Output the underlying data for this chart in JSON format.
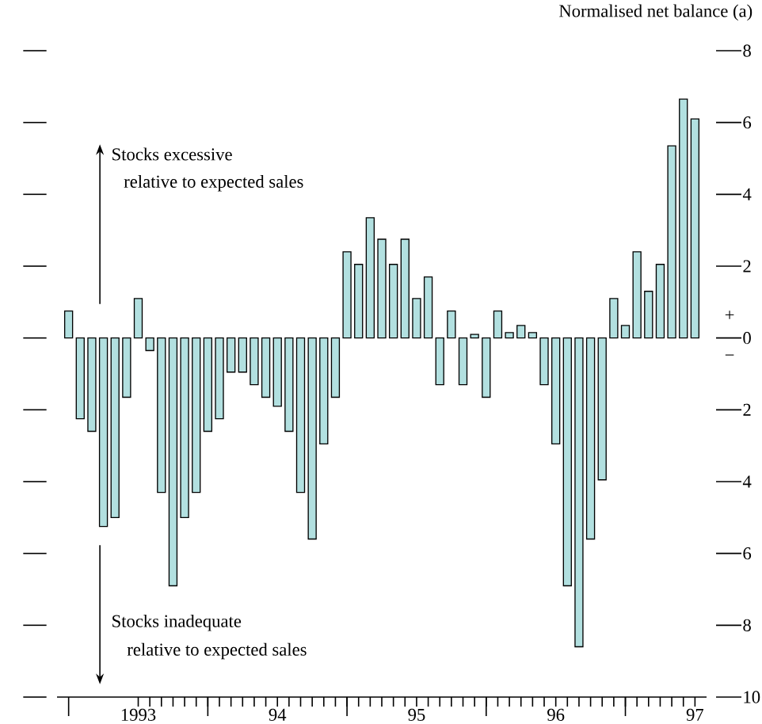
{
  "chart_data": {
    "type": "bar",
    "ylabel": "Normalised net balance (a)",
    "color": "#b2e0e0",
    "x": [
      "1993-01",
      "1993-02",
      "1993-03",
      "1993-04",
      "1993-05",
      "1993-06",
      "1993-07",
      "1993-08",
      "1993-09",
      "1993-10",
      "1993-11",
      "1993-12",
      "1994-01",
      "1994-02",
      "1994-03",
      "1994-04",
      "1994-05",
      "1994-06",
      "1994-07",
      "1994-08",
      "1994-09",
      "1994-10",
      "1994-11",
      "1994-12",
      "1995-01",
      "1995-02",
      "1995-03",
      "1995-04",
      "1995-05",
      "1995-06",
      "1995-07",
      "1995-08",
      "1995-09",
      "1995-10",
      "1995-11",
      "1995-12",
      "1996-01",
      "1996-02",
      "1996-03",
      "1996-04",
      "1996-05",
      "1996-06",
      "1996-07",
      "1996-08",
      "1996-09",
      "1996-10",
      "1996-11",
      "1996-12",
      "1997-01",
      "1997-02",
      "1997-03",
      "1997-04",
      "1997-05",
      "1997-06",
      "1997-07"
    ],
    "values": [
      0.75,
      -2.25,
      -2.6,
      -5.25,
      -5.0,
      -1.65,
      1.1,
      -0.35,
      -4.3,
      -6.9,
      -5.0,
      -4.3,
      -2.6,
      -2.25,
      -0.95,
      -0.95,
      -1.3,
      -1.65,
      -1.9,
      -2.6,
      -4.3,
      -5.6,
      -2.95,
      -1.65,
      2.4,
      2.05,
      3.35,
      2.75,
      2.05,
      2.75,
      1.1,
      1.7,
      -1.3,
      0.75,
      -1.3,
      0.1,
      -1.65,
      0.75,
      0.15,
      0.35,
      0.15,
      -1.3,
      -2.95,
      -6.9,
      -8.6,
      -5.6,
      -3.95,
      1.1,
      0.35,
      2.4,
      1.3,
      2.05,
      5.35,
      6.65,
      6.1
    ],
    "xlim": [
      "1992-12",
      "1997-08"
    ],
    "xticks": [
      {
        "value": "1993-07",
        "label": "1993"
      },
      {
        "value": "1994-07",
        "label": "94"
      },
      {
        "value": "1995-07",
        "label": "95"
      },
      {
        "value": "1996-07",
        "label": "96"
      },
      {
        "value": "1997-07",
        "label": "97"
      },
      {
        "value": "1993-01",
        "label": null
      },
      {
        "value": "1994-01",
        "label": null
      },
      {
        "value": "1995-01",
        "label": null
      },
      {
        "value": "1996-01",
        "label": null
      },
      {
        "value": "1997-01",
        "label": null
      }
    ],
    "ylim": [
      -10,
      8
    ],
    "yticks": [
      8,
      6,
      4,
      2,
      0,
      {
        "value": -2,
        "label": "2"
      },
      {
        "value": -4,
        "label": "4"
      },
      {
        "value": -6,
        "label": "6"
      },
      {
        "value": -8,
        "label": "8"
      },
      {
        "value": -10,
        "label": "10"
      }
    ],
    "annotations": [
      "Stocks excessive",
      "relative to expected sales",
      "Stocks inadequate",
      "relative to expected sales",
      "+",
      "−"
    ]
  }
}
